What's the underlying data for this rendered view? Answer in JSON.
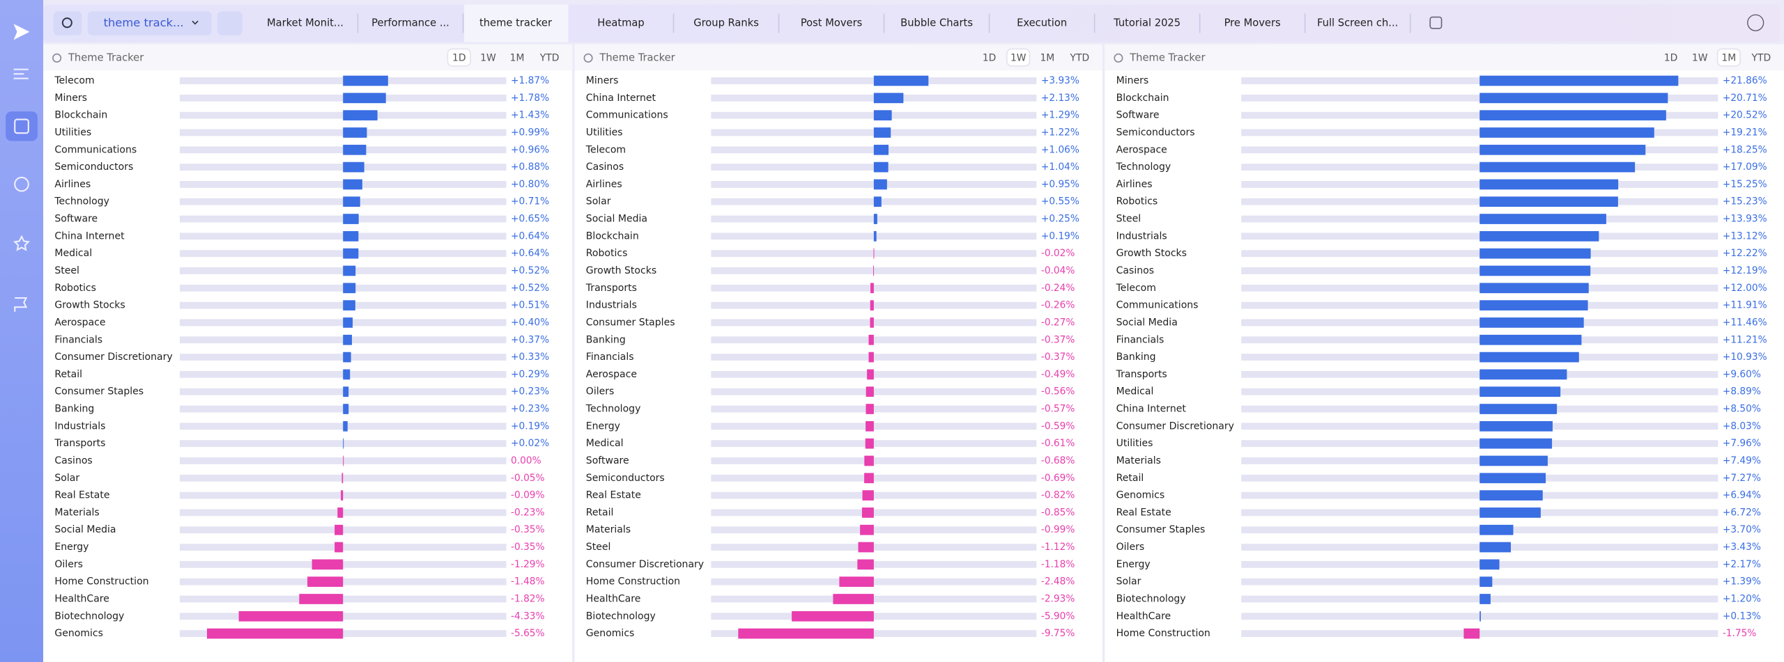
{
  "toolbar": {
    "selector": "theme track...",
    "tabs": [
      "Market Monit...",
      "Performance ...",
      "theme tracker",
      "Heatmap",
      "Group Ranks",
      "Post Movers",
      "Bubble Charts",
      "Execution",
      "Tutorial 2025",
      "Pre Movers",
      "Full Screen ch..."
    ],
    "active_tab": "theme tracker"
  },
  "panels": [
    {
      "title": "Theme Tracker",
      "ranges": [
        "1D",
        "1W",
        "1M",
        "YTD"
      ],
      "selected_range": "1D",
      "chart_data": {
        "type": "bar",
        "orientation": "horizontal",
        "positive_color": "#3a6ee3",
        "negative_color": "#e83eae",
        "xlim": [
          -6.78,
          6.78
        ],
        "categories": [
          "Telecom",
          "Miners",
          "Blockchain",
          "Utilities",
          "Communications",
          "Semiconductors",
          "Airlines",
          "Technology",
          "Software",
          "China Internet",
          "Medical",
          "Steel",
          "Robotics",
          "Growth Stocks",
          "Aerospace",
          "Financials",
          "Consumer Discretionary",
          "Retail",
          "Consumer Staples",
          "Banking",
          "Industrials",
          "Transports",
          "Casinos",
          "Solar",
          "Real Estate",
          "Materials",
          "Social Media",
          "Energy",
          "Oilers",
          "Home Construction",
          "HealthCare",
          "Biotechnology",
          "Genomics"
        ],
        "values": [
          1.87,
          1.78,
          1.43,
          0.99,
          0.96,
          0.88,
          0.8,
          0.71,
          0.65,
          0.64,
          0.64,
          0.52,
          0.52,
          0.51,
          0.4,
          0.37,
          0.33,
          0.29,
          0.23,
          0.23,
          0.19,
          0.02,
          0.0,
          -0.05,
          -0.09,
          -0.23,
          -0.35,
          -0.35,
          -1.29,
          -1.48,
          -1.82,
          -4.33,
          -5.65
        ],
        "value_labels": [
          "+1.87%",
          "+1.78%",
          "+1.43%",
          "+0.99%",
          "+0.96%",
          "+0.88%",
          "+0.80%",
          "+0.71%",
          "+0.65%",
          "+0.64%",
          "+0.64%",
          "+0.52%",
          "+0.52%",
          "+0.51%",
          "+0.40%",
          "+0.37%",
          "+0.33%",
          "+0.29%",
          "+0.23%",
          "+0.23%",
          "+0.19%",
          "+0.02%",
          "0.00%",
          "-0.05%",
          "-0.09%",
          "-0.23%",
          "-0.35%",
          "-0.35%",
          "-1.29%",
          "-1.48%",
          "-1.82%",
          "-4.33%",
          "-5.65%"
        ]
      }
    },
    {
      "title": "Theme Tracker",
      "ranges": [
        "1D",
        "1W",
        "1M",
        "YTD"
      ],
      "selected_range": "1W",
      "chart_data": {
        "type": "bar",
        "orientation": "horizontal",
        "positive_color": "#3a6ee3",
        "negative_color": "#e83eae",
        "xlim": [
          -11.7,
          11.7
        ],
        "categories": [
          "Miners",
          "China Internet",
          "Communications",
          "Utilities",
          "Telecom",
          "Casinos",
          "Airlines",
          "Solar",
          "Social Media",
          "Blockchain",
          "Robotics",
          "Growth Stocks",
          "Transports",
          "Industrials",
          "Consumer Staples",
          "Banking",
          "Financials",
          "Aerospace",
          "Oilers",
          "Technology",
          "Energy",
          "Medical",
          "Software",
          "Semiconductors",
          "Real Estate",
          "Retail",
          "Materials",
          "Steel",
          "Consumer Discretionary",
          "Home Construction",
          "HealthCare",
          "Biotechnology",
          "Genomics"
        ],
        "values": [
          3.93,
          2.13,
          1.29,
          1.22,
          1.06,
          1.04,
          0.95,
          0.55,
          0.25,
          0.19,
          -0.02,
          -0.04,
          -0.24,
          -0.26,
          -0.27,
          -0.37,
          -0.37,
          -0.49,
          -0.56,
          -0.57,
          -0.59,
          -0.61,
          -0.68,
          -0.69,
          -0.82,
          -0.85,
          -0.99,
          -1.12,
          -1.18,
          -2.48,
          -2.93,
          -5.9,
          -9.75
        ],
        "value_labels": [
          "+3.93%",
          "+2.13%",
          "+1.29%",
          "+1.22%",
          "+1.06%",
          "+1.04%",
          "+0.95%",
          "+0.55%",
          "+0.25%",
          "+0.19%",
          "-0.02%",
          "-0.04%",
          "-0.24%",
          "-0.26%",
          "-0.27%",
          "-0.37%",
          "-0.37%",
          "-0.49%",
          "-0.56%",
          "-0.57%",
          "-0.59%",
          "-0.61%",
          "-0.68%",
          "-0.69%",
          "-0.82%",
          "-0.85%",
          "-0.99%",
          "-1.12%",
          "-1.18%",
          "-2.48%",
          "-2.93%",
          "-5.90%",
          "-9.75%"
        ]
      }
    },
    {
      "title": "Theme Tracker",
      "ranges": [
        "1D",
        "1W",
        "1M",
        "YTD"
      ],
      "selected_range": "1M",
      "chart_data": {
        "type": "bar",
        "orientation": "horizontal",
        "positive_color": "#3a6ee3",
        "negative_color": "#e83eae",
        "xlim": [
          -26.23,
          26.23
        ],
        "categories": [
          "Miners",
          "Blockchain",
          "Software",
          "Semiconductors",
          "Aerospace",
          "Technology",
          "Airlines",
          "Robotics",
          "Steel",
          "Industrials",
          "Growth Stocks",
          "Casinos",
          "Telecom",
          "Communications",
          "Social Media",
          "Financials",
          "Banking",
          "Transports",
          "Medical",
          "China Internet",
          "Consumer Discretionary",
          "Utilities",
          "Materials",
          "Retail",
          "Genomics",
          "Real Estate",
          "Consumer Staples",
          "Oilers",
          "Energy",
          "Solar",
          "Biotechnology",
          "HealthCare",
          "Home Construction"
        ],
        "values": [
          21.86,
          20.71,
          20.52,
          19.21,
          18.25,
          17.09,
          15.25,
          15.23,
          13.93,
          13.12,
          12.22,
          12.19,
          12.0,
          11.91,
          11.46,
          11.21,
          10.93,
          9.6,
          8.89,
          8.5,
          8.03,
          7.96,
          7.49,
          7.27,
          6.94,
          6.72,
          3.7,
          3.43,
          2.17,
          1.39,
          1.2,
          0.13,
          -1.75
        ],
        "value_labels": [
          "+21.86%",
          "+20.71%",
          "+20.52%",
          "+19.21%",
          "+18.25%",
          "+17.09%",
          "+15.25%",
          "+15.23%",
          "+13.93%",
          "+13.12%",
          "+12.22%",
          "+12.19%",
          "+12.00%",
          "+11.91%",
          "+11.46%",
          "+11.21%",
          "+10.93%",
          "+9.60%",
          "+8.89%",
          "+8.50%",
          "+8.03%",
          "+7.96%",
          "+7.49%",
          "+7.27%",
          "+6.94%",
          "+6.72%",
          "+3.70%",
          "+3.43%",
          "+2.17%",
          "+1.39%",
          "+1.20%",
          "+0.13%",
          "-1.75%"
        ]
      }
    }
  ]
}
